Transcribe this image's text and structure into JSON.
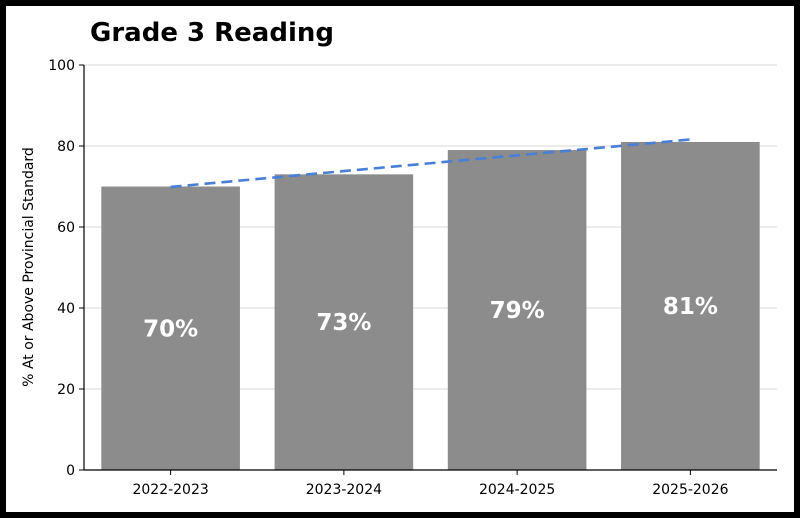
{
  "chart_data": {
    "type": "bar",
    "title": "Grade 3 Reading",
    "xlabel": "",
    "ylabel": "% At or Above Provincial Standard",
    "categories": [
      "2022-2023",
      "2023-2024",
      "2024-2025",
      "2025-2026"
    ],
    "values": [
      70,
      73,
      79,
      81
    ],
    "data_labels": [
      "70%",
      "73%",
      "79%",
      "81%"
    ],
    "ylim": [
      0,
      100
    ],
    "yticks": [
      0,
      20,
      40,
      60,
      80,
      100
    ],
    "grid": "horizontal",
    "bar_color": "#8c8c8c",
    "trendline": {
      "style": "dashed",
      "color": "#4a7fd6"
    }
  }
}
